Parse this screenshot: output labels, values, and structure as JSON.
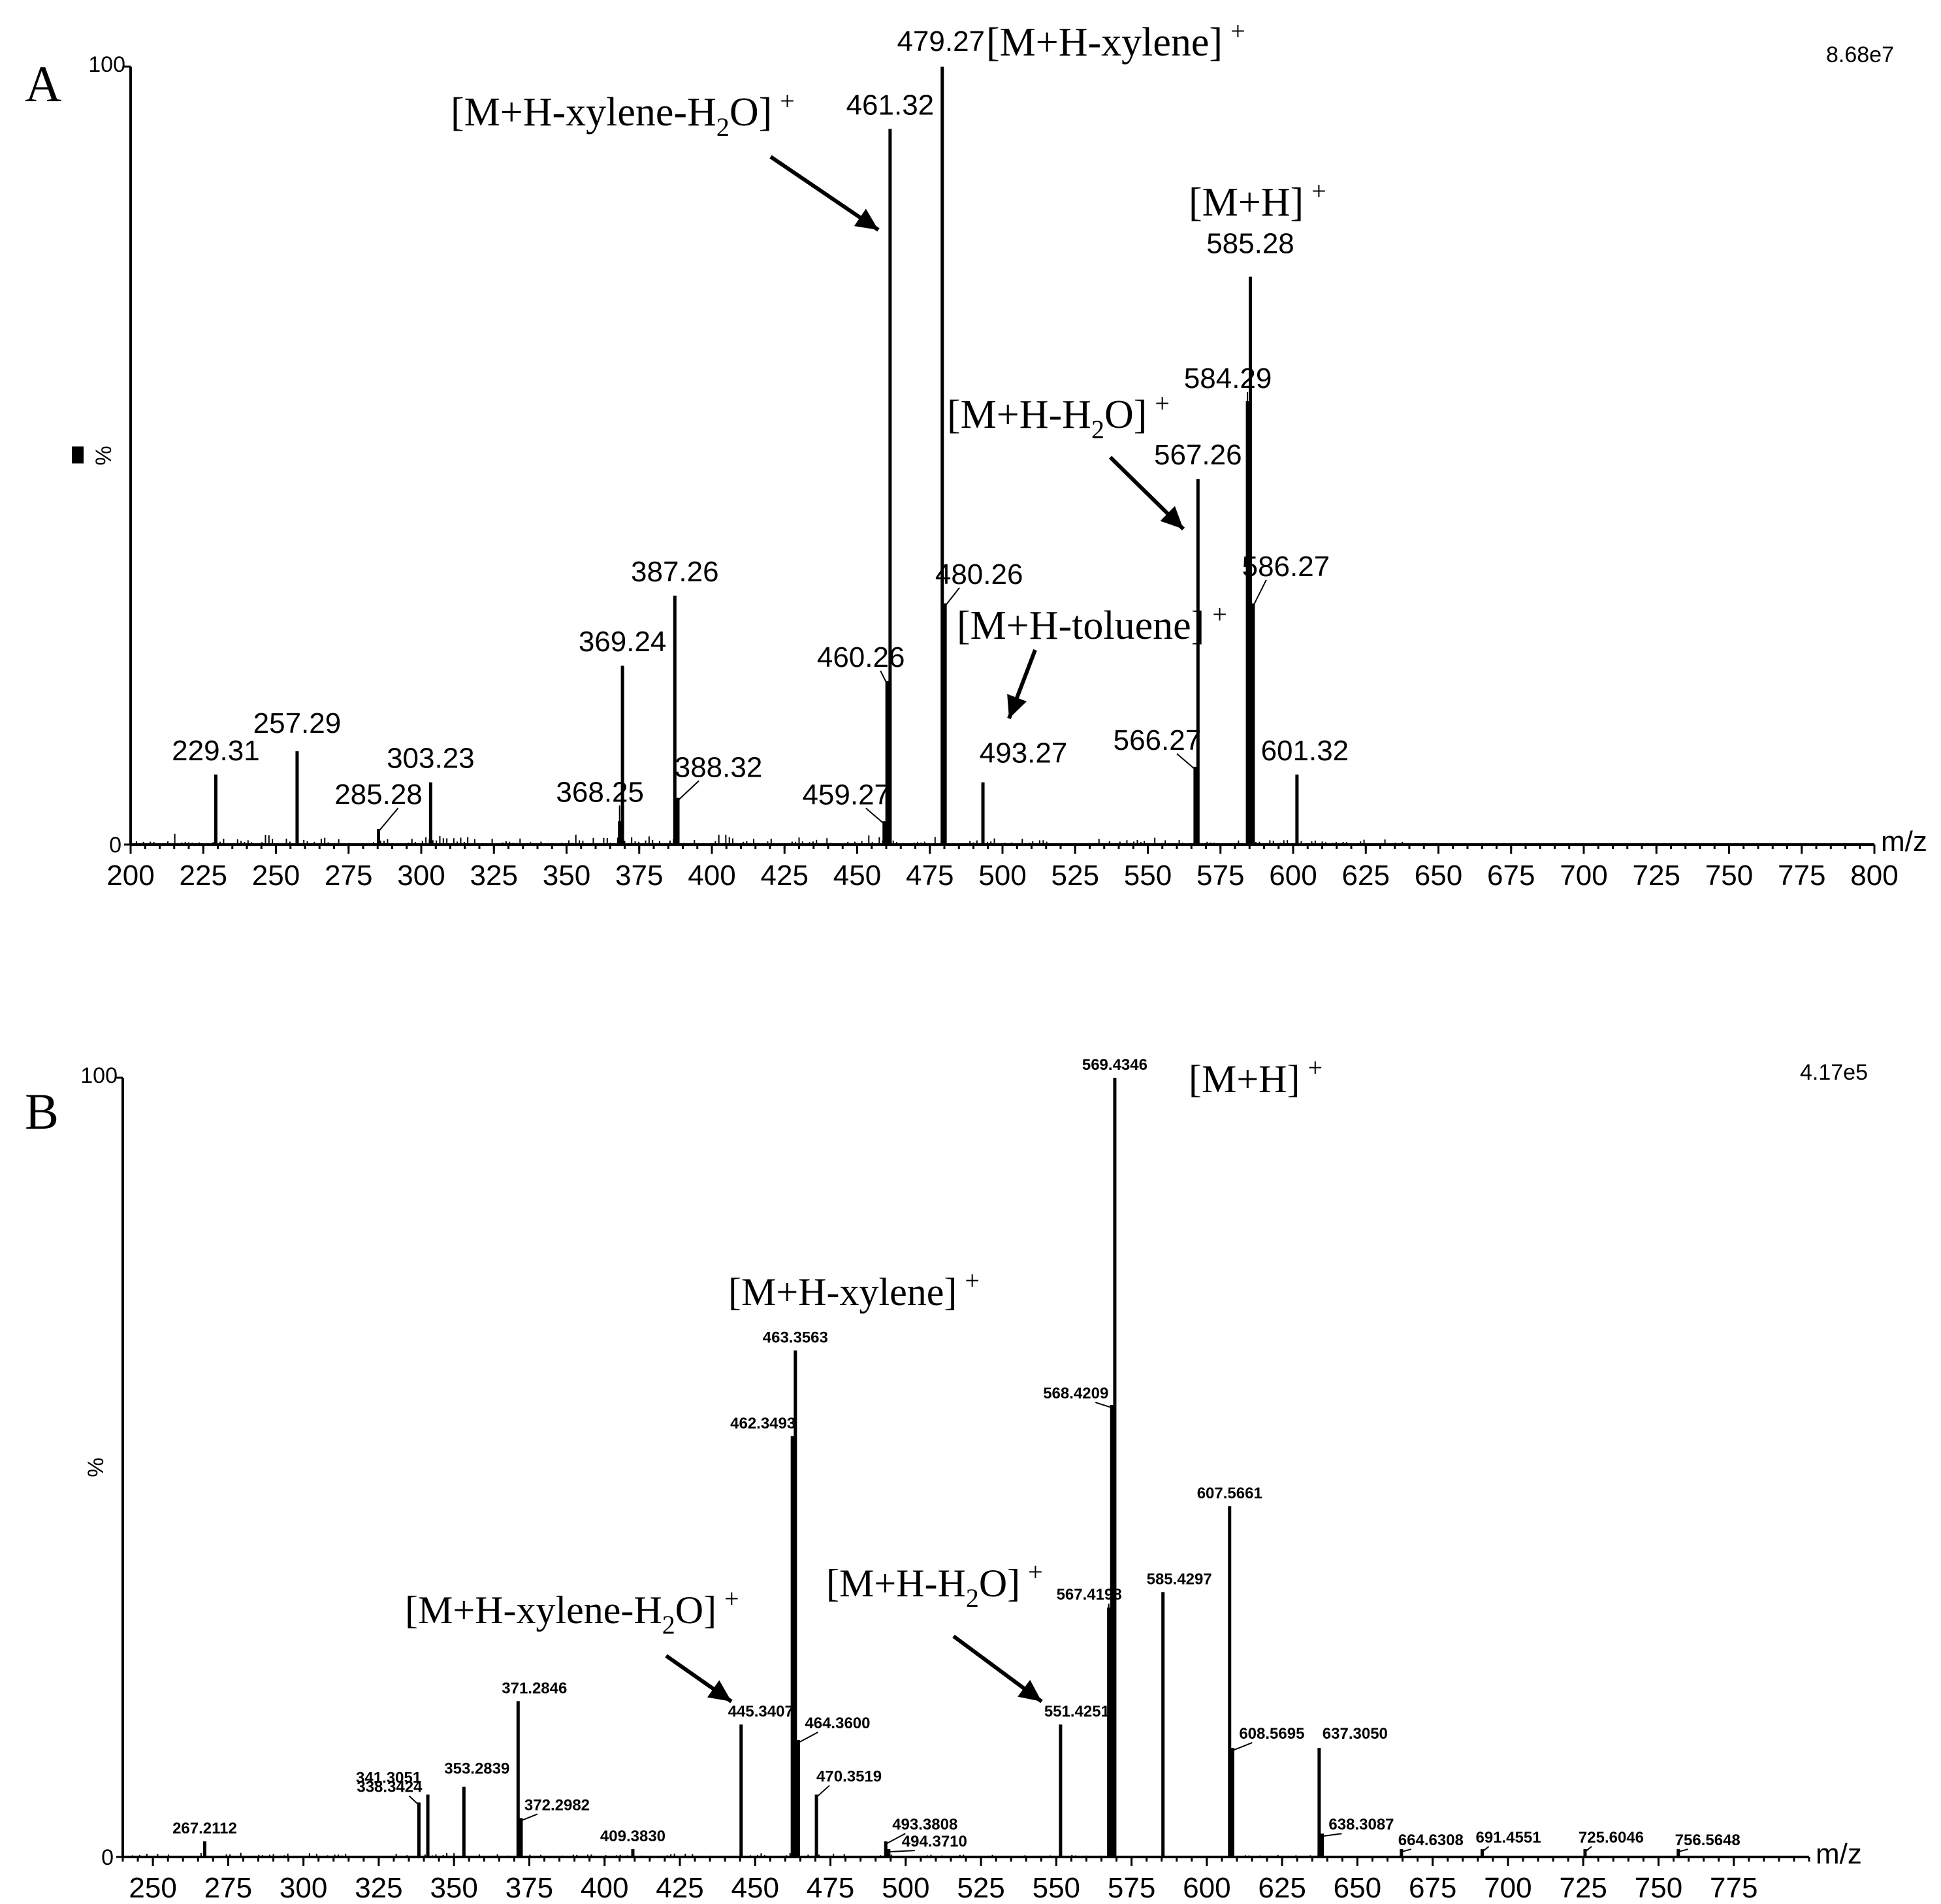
{
  "chart_data": [
    {
      "panel": "A",
      "type": "bar",
      "title": "",
      "xlabel": "m/z",
      "ylabel": "%",
      "y_top_label": "100",
      "y_zero_label": "0",
      "scale_label": "8.68e7",
      "xlim": [
        200,
        800
      ],
      "ylim": [
        0,
        100
      ],
      "xticks": [
        200,
        225,
        250,
        275,
        300,
        325,
        350,
        375,
        400,
        425,
        450,
        475,
        500,
        525,
        550,
        575,
        600,
        625,
        650,
        675,
        700,
        725,
        750,
        775,
        800
      ],
      "peaks": [
        {
          "mz": 229.31,
          "intensity": 9,
          "label": "229.31"
        },
        {
          "mz": 257.29,
          "intensity": 12,
          "label": "257.29"
        },
        {
          "mz": 285.28,
          "intensity": 2,
          "label": "285.28"
        },
        {
          "mz": 303.23,
          "intensity": 8,
          "label": "303.23"
        },
        {
          "mz": 368.25,
          "intensity": 3,
          "label": "368.25"
        },
        {
          "mz": 369.24,
          "intensity": 23,
          "label": "369.24"
        },
        {
          "mz": 387.26,
          "intensity": 32,
          "label": "387.26"
        },
        {
          "mz": 388.32,
          "intensity": 6,
          "label": "388.32"
        },
        {
          "mz": 459.27,
          "intensity": 3,
          "label": "459.27"
        },
        {
          "mz": 460.26,
          "intensity": 21,
          "label": "460.26"
        },
        {
          "mz": 461.32,
          "intensity": 92,
          "label": "461.32"
        },
        {
          "mz": 479.27,
          "intensity": 100,
          "label": "479.27"
        },
        {
          "mz": 480.26,
          "intensity": 31,
          "label": "480.26"
        },
        {
          "mz": 493.27,
          "intensity": 8,
          "label": "493.27"
        },
        {
          "mz": 566.27,
          "intensity": 10,
          "label": "566.27"
        },
        {
          "mz": 567.26,
          "intensity": 47,
          "label": "567.26"
        },
        {
          "mz": 584.29,
          "intensity": 57,
          "label": "584.29"
        },
        {
          "mz": 585.28,
          "intensity": 73,
          "label": "585.28"
        },
        {
          "mz": 586.27,
          "intensity": 31,
          "label": "586.27"
        },
        {
          "mz": 601.32,
          "intensity": 9,
          "label": "601.32"
        }
      ],
      "annotations": [
        {
          "text": "[M+H-xylene-H",
          "sub": "2",
          "tail": "O]",
          "sup": "+"
        },
        {
          "text": "[M+H-xylene]",
          "sub": "",
          "tail": "",
          "sup": "+"
        },
        {
          "text": "[M+H]",
          "sub": "",
          "tail": "",
          "sup": "+"
        },
        {
          "text": "[M+H-H",
          "sub": "2",
          "tail": "O]",
          "sup": "+"
        },
        {
          "text": "[M+H-toluene]",
          "sub": "",
          "tail": "",
          "sup": "+"
        }
      ]
    },
    {
      "panel": "B",
      "type": "bar",
      "title": "",
      "xlabel": "m/z",
      "ylabel": "%",
      "y_top_label": "100",
      "y_zero_label": "0",
      "scale_label": "4.17e5",
      "xlim": [
        240,
        800
      ],
      "ylim": [
        0,
        100
      ],
      "xticks": [
        250,
        275,
        300,
        325,
        350,
        375,
        400,
        425,
        450,
        475,
        500,
        525,
        550,
        575,
        600,
        625,
        650,
        675,
        700,
        725,
        750,
        775
      ],
      "peaks": [
        {
          "mz": 267.2112,
          "intensity": 2,
          "label": "267.2112"
        },
        {
          "mz": 338.3424,
          "intensity": 7,
          "label": "338.3424"
        },
        {
          "mz": 341.3051,
          "intensity": 8,
          "label": "341.3051"
        },
        {
          "mz": 353.2839,
          "intensity": 9,
          "label": "353.2839"
        },
        {
          "mz": 371.2846,
          "intensity": 20,
          "label": "371.2846"
        },
        {
          "mz": 372.2982,
          "intensity": 5,
          "label": "372.2982"
        },
        {
          "mz": 409.383,
          "intensity": 1,
          "label": "409.3830"
        },
        {
          "mz": 445.3407,
          "intensity": 17,
          "label": "445.3407"
        },
        {
          "mz": 462.3493,
          "intensity": 54,
          "label": "462.3493"
        },
        {
          "mz": 463.3563,
          "intensity": 65,
          "label": "463.3563"
        },
        {
          "mz": 464.36,
          "intensity": 15,
          "label": "464.3600"
        },
        {
          "mz": 470.3519,
          "intensity": 8,
          "label": "470.3519"
        },
        {
          "mz": 493.3808,
          "intensity": 2,
          "label": "493.3808"
        },
        {
          "mz": 494.371,
          "intensity": 1,
          "label": "494.3710"
        },
        {
          "mz": 551.4251,
          "intensity": 17,
          "label": "551.4251"
        },
        {
          "mz": 567.4198,
          "intensity": 32,
          "label": "567.4198"
        },
        {
          "mz": 568.4209,
          "intensity": 58,
          "label": "568.4209"
        },
        {
          "mz": 569.4346,
          "intensity": 100,
          "label": "569.4346"
        },
        {
          "mz": 585.4297,
          "intensity": 34,
          "label": "585.4297"
        },
        {
          "mz": 607.5661,
          "intensity": 45,
          "label": "607.5661"
        },
        {
          "mz": 608.5695,
          "intensity": 14,
          "label": "608.5695"
        },
        {
          "mz": 637.305,
          "intensity": 14,
          "label": "637.3050"
        },
        {
          "mz": 638.3087,
          "intensity": 3,
          "label": "638.3087"
        },
        {
          "mz": 664.6308,
          "intensity": 1,
          "label": "664.6308"
        },
        {
          "mz": 691.4551,
          "intensity": 1,
          "label": "691.4551"
        },
        {
          "mz": 725.6046,
          "intensity": 1,
          "label": "725.6046"
        },
        {
          "mz": 756.5648,
          "intensity": 1,
          "label": "756.5648"
        }
      ],
      "annotations": [
        {
          "text": "[M+H]",
          "sub": "",
          "tail": "",
          "sup": "+"
        },
        {
          "text": "[M+H-xylene]",
          "sub": "",
          "tail": "",
          "sup": "+"
        },
        {
          "text": "[M+H-xylene-H",
          "sub": "2",
          "tail": "O]",
          "sup": "+"
        },
        {
          "text": "[M+H-H",
          "sub": "2",
          "tail": "O]",
          "sup": "+"
        }
      ]
    }
  ]
}
